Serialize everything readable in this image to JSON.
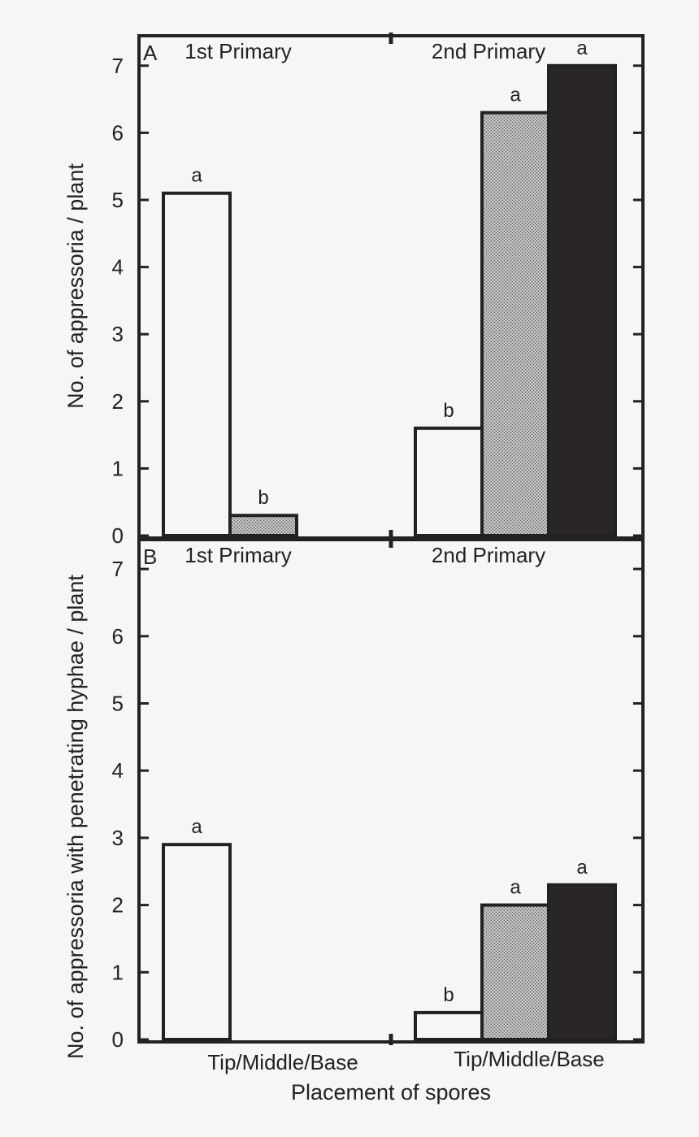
{
  "figure": {
    "xlabel": "Placement of spores"
  },
  "chart_data": [
    {
      "type": "bar",
      "panel_letter": "A",
      "ylabel": "No. of appressoria / plant",
      "ylim": [
        0,
        7
      ],
      "yticks": [
        "0",
        "1",
        "2",
        "3",
        "4",
        "5",
        "6",
        "7"
      ],
      "groups": [
        {
          "name": "1st Primary",
          "category_label": "",
          "bars": [
            {
              "position": "Tip",
              "value": 5.1,
              "sig": "a",
              "fill": "white"
            },
            {
              "position": "Middle",
              "value": 0.3,
              "sig": "b",
              "fill": "stipple"
            }
          ]
        },
        {
          "name": "2nd Primary",
          "category_label": "",
          "bars": [
            {
              "position": "Tip",
              "value": 1.6,
              "sig": "b",
              "fill": "white"
            },
            {
              "position": "Middle",
              "value": 6.3,
              "sig": "a",
              "fill": "stipple"
            },
            {
              "position": "Base",
              "value": 7.0,
              "sig": "a",
              "fill": "black"
            }
          ]
        }
      ]
    },
    {
      "type": "bar",
      "panel_letter": "B",
      "ylabel": "No. of appressoria with penetrating hyphae / plant",
      "ylim": [
        0,
        7
      ],
      "yticks": [
        "0",
        "1",
        "2",
        "3",
        "4",
        "5",
        "6",
        "7"
      ],
      "groups": [
        {
          "name": "1st Primary",
          "category_label": "Tip/Middle/Base",
          "bars": [
            {
              "position": "Tip",
              "value": 2.9,
              "sig": "a",
              "fill": "white"
            }
          ]
        },
        {
          "name": "2nd Primary",
          "category_label": "Tip/Middle/Base",
          "bars": [
            {
              "position": "Tip",
              "value": 0.4,
              "sig": "b",
              "fill": "white"
            },
            {
              "position": "Middle",
              "value": 2.0,
              "sig": "a",
              "fill": "stipple"
            },
            {
              "position": "Base",
              "value": 2.3,
              "sig": "a",
              "fill": "black"
            }
          ]
        }
      ]
    }
  ],
  "colors": {
    "background": "#f6f6f6",
    "ink": "#222222",
    "white_bar": "#f6f6f6",
    "black_bar": "#2a2627",
    "stipple_base": "#a8a8a8"
  }
}
